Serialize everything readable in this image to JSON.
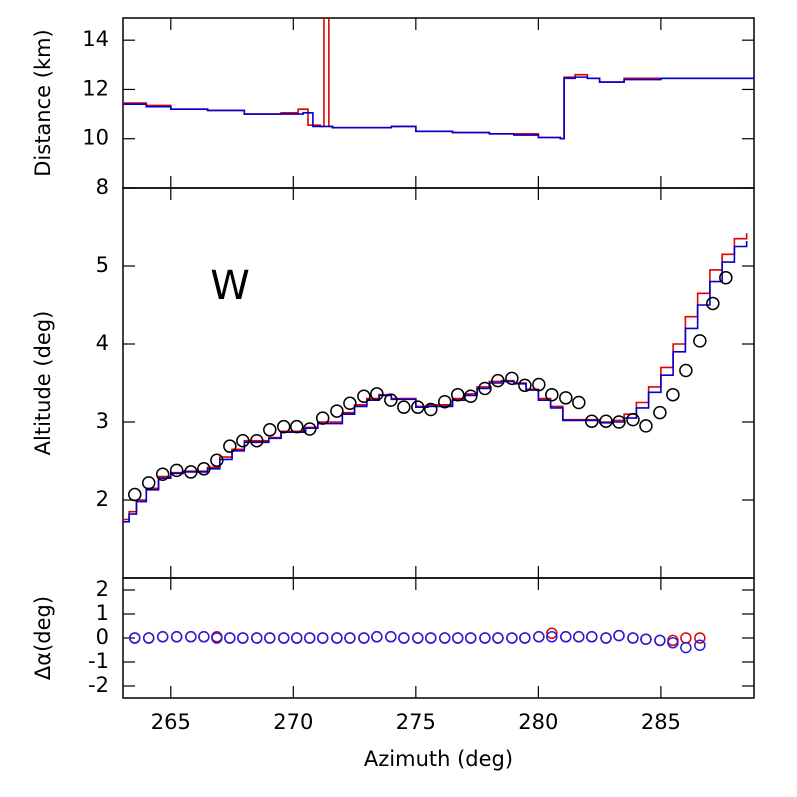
{
  "chart_data": [
    {
      "type": "step",
      "ylabel": "Distance (km)",
      "xlim": [
        263.05,
        288.8
      ],
      "ylim": [
        8,
        14.9
      ],
      "yticks": [
        8,
        10,
        12,
        14
      ],
      "series": [
        {
          "color": "#e00000",
          "x": [
            263.05,
            264,
            265,
            266.5,
            268,
            269.5,
            270.2,
            270.6,
            271.1,
            271.25,
            271.45,
            271.6,
            273,
            274,
            275,
            276.5,
            278,
            279,
            280,
            280.9,
            281.05,
            281.5,
            282,
            282.5,
            283.5,
            285,
            286.5,
            288.8
          ],
          "values": [
            11.45,
            11.35,
            11.2,
            11.15,
            11.0,
            11.05,
            11.2,
            10.55,
            10.5,
            16,
            10.5,
            10.45,
            10.45,
            10.5,
            10.3,
            10.25,
            10.2,
            10.2,
            10.05,
            10.0,
            12.5,
            12.6,
            12.45,
            12.3,
            12.45,
            12.45,
            12.45,
            12.5
          ]
        },
        {
          "color": "#0000d0",
          "x": [
            263.05,
            264,
            265,
            266.5,
            268,
            269.5,
            270.4,
            270.8,
            271.6,
            273,
            274,
            275,
            276.5,
            278,
            279,
            280,
            280.9,
            281.05,
            281.5,
            282,
            282.5,
            283.5,
            285,
            286.5,
            288.8
          ],
          "values": [
            11.4,
            11.3,
            11.2,
            11.15,
            11.0,
            11.0,
            11.05,
            10.5,
            10.45,
            10.45,
            10.5,
            10.3,
            10.25,
            10.2,
            10.15,
            10.05,
            10.0,
            12.45,
            12.5,
            12.45,
            12.3,
            12.4,
            12.45,
            12.45,
            12.5
          ]
        }
      ]
    },
    {
      "type": "step",
      "ylabel": "Altitude (deg)",
      "annotation": "W",
      "xlim": [
        263.05,
        288.8
      ],
      "ylim": [
        1,
        6
      ],
      "yticks": [
        2,
        3,
        4,
        5
      ],
      "series": [
        {
          "color": "#e00000",
          "x": [
            263.05,
            263.3,
            263.6,
            264.0,
            264.5,
            265.0,
            265.5,
            266.5,
            267.0,
            267.5,
            268.0,
            269.0,
            269.5,
            270.5,
            271.0,
            272.0,
            272.5,
            273.0,
            273.5,
            274.0,
            275.0,
            275.5,
            276.5,
            277.0,
            277.5,
            278.0,
            278.5,
            279.0,
            279.5,
            280.0,
            280.5,
            281.0,
            282.5,
            283.0,
            283.5,
            284.0,
            284.5,
            285.0,
            285.5,
            286.0,
            286.5,
            287.0,
            287.5,
            288.0,
            288.5
          ],
          "values": [
            1.75,
            1.85,
            2.0,
            2.15,
            2.3,
            2.35,
            2.37,
            2.42,
            2.55,
            2.65,
            2.76,
            2.8,
            2.88,
            2.93,
            3.0,
            3.12,
            3.22,
            3.3,
            3.35,
            3.3,
            3.2,
            3.22,
            3.3,
            3.36,
            3.45,
            3.52,
            3.53,
            3.5,
            3.42,
            3.3,
            3.2,
            3.03,
            3.0,
            3.02,
            3.1,
            3.25,
            3.45,
            3.7,
            4.0,
            4.35,
            4.65,
            4.95,
            5.15,
            5.35,
            5.42
          ]
        },
        {
          "color": "#0000d0",
          "x": [
            263.05,
            263.3,
            263.6,
            264.0,
            264.5,
            265.0,
            265.5,
            266.5,
            267.0,
            267.5,
            268.0,
            269.0,
            269.5,
            270.5,
            271.0,
            272.0,
            272.5,
            273.0,
            273.5,
            274.0,
            275.0,
            275.5,
            276.5,
            277.0,
            277.5,
            278.0,
            278.5,
            279.0,
            279.5,
            280.0,
            280.5,
            281.0,
            282.5,
            283.0,
            283.5,
            284.0,
            284.5,
            285.0,
            285.5,
            286.0,
            286.5,
            287.0,
            287.5,
            288.0,
            288.5
          ],
          "values": [
            1.72,
            1.82,
            1.98,
            2.13,
            2.28,
            2.34,
            2.36,
            2.4,
            2.52,
            2.63,
            2.74,
            2.79,
            2.87,
            2.92,
            2.98,
            3.1,
            3.2,
            3.28,
            3.34,
            3.29,
            3.19,
            3.2,
            3.28,
            3.34,
            3.43,
            3.5,
            3.52,
            3.49,
            3.41,
            3.28,
            3.18,
            3.02,
            2.99,
            3.0,
            3.05,
            3.18,
            3.38,
            3.6,
            3.9,
            4.2,
            4.5,
            4.8,
            5.05,
            5.25,
            5.32
          ]
        },
        {
          "color": "#000000",
          "marker": "circle",
          "x": [
            263.53,
            264.1,
            264.67,
            265.24,
            265.82,
            266.35,
            266.88,
            267.41,
            267.94,
            268.51,
            269.04,
            269.61,
            270.14,
            270.67,
            271.2,
            271.78,
            272.31,
            272.88,
            273.41,
            273.98,
            274.51,
            275.08,
            275.61,
            276.18,
            276.71,
            277.24,
            277.82,
            278.35,
            278.92,
            279.45,
            280.02,
            280.55,
            281.12,
            281.65,
            282.18,
            282.76,
            283.29,
            283.86,
            284.39,
            284.96,
            285.49,
            286.02,
            286.59,
            287.12,
            287.65
          ],
          "values": [
            2.07,
            2.22,
            2.33,
            2.38,
            2.36,
            2.4,
            2.51,
            2.69,
            2.76,
            2.76,
            2.9,
            2.94,
            2.94,
            2.91,
            3.05,
            3.14,
            3.24,
            3.33,
            3.36,
            3.28,
            3.19,
            3.19,
            3.16,
            3.26,
            3.35,
            3.33,
            3.43,
            3.53,
            3.56,
            3.47,
            3.48,
            3.35,
            3.31,
            3.25,
            3.01,
            3.01,
            3.0,
            3.03,
            2.95,
            3.12,
            3.35,
            3.66,
            4.04,
            4.52,
            4.85
          ]
        }
      ]
    },
    {
      "type": "scatter",
      "ylabel": "Δα(deg)",
      "xlabel": "Azimuth (deg)",
      "xlim": [
        263.05,
        288.8
      ],
      "xticks": [
        265,
        270,
        275,
        280,
        285
      ],
      "ylim": [
        -2.5,
        2.5
      ],
      "yticks": [
        -2,
        -1,
        0,
        1,
        2
      ],
      "series": [
        {
          "color": "#e00000",
          "x": [
            263.53,
            264.1,
            264.67,
            265.24,
            265.82,
            266.35,
            266.88,
            267.41,
            267.94,
            268.51,
            269.04,
            269.61,
            270.14,
            270.67,
            271.2,
            271.78,
            272.31,
            272.88,
            273.41,
            273.98,
            274.51,
            275.08,
            275.61,
            276.18,
            276.71,
            277.24,
            277.82,
            278.35,
            278.92,
            279.45,
            280.02,
            280.55,
            281.12,
            281.65,
            282.18,
            282.76,
            283.29,
            283.86,
            284.39,
            284.96,
            285.49,
            286.02,
            286.59
          ],
          "values": [
            0.0,
            0.0,
            0.05,
            0.05,
            0.05,
            0.05,
            0.05,
            0.0,
            0.0,
            0.0,
            0.0,
            0.0,
            0.0,
            0.0,
            0.0,
            0.0,
            0.0,
            0.0,
            0.05,
            0.05,
            0.0,
            0.0,
            0.0,
            0.0,
            0.0,
            0.0,
            0.0,
            0.0,
            0.0,
            0.0,
            0.05,
            0.2,
            0.05,
            0.05,
            0.05,
            0.0,
            0.1,
            0.0,
            -0.05,
            -0.1,
            -0.1,
            0.0,
            0.0
          ]
        },
        {
          "color": "#2020e0",
          "x": [
            263.53,
            264.1,
            264.67,
            265.24,
            265.82,
            266.35,
            266.88,
            267.41,
            267.94,
            268.51,
            269.04,
            269.61,
            270.14,
            270.67,
            271.2,
            271.78,
            272.31,
            272.88,
            273.41,
            273.98,
            274.51,
            275.08,
            275.61,
            276.18,
            276.71,
            277.24,
            277.82,
            278.35,
            278.92,
            279.45,
            280.02,
            280.55,
            281.12,
            281.65,
            282.18,
            282.76,
            283.29,
            283.86,
            284.39,
            284.96,
            285.49,
            286.02,
            286.59
          ],
          "values": [
            0.0,
            0.0,
            0.05,
            0.05,
            0.05,
            0.05,
            0.0,
            0.0,
            0.0,
            0.0,
            0.0,
            0.0,
            0.0,
            0.0,
            0.0,
            0.0,
            0.0,
            0.0,
            0.05,
            0.05,
            0.0,
            0.0,
            0.0,
            0.0,
            0.0,
            0.0,
            0.0,
            0.0,
            0.0,
            0.0,
            0.05,
            0.05,
            0.05,
            0.05,
            0.05,
            0.0,
            0.1,
            0.0,
            -0.05,
            -0.1,
            -0.2,
            -0.4,
            -0.3
          ]
        }
      ]
    }
  ]
}
